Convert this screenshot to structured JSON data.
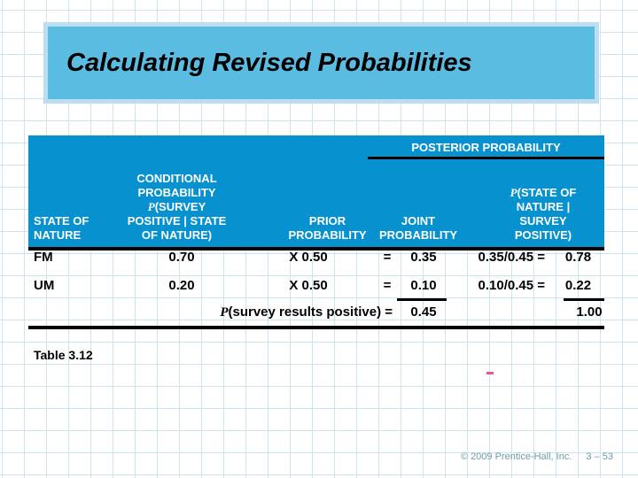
{
  "title": "Calculating Revised Probabilities",
  "table": {
    "posterior_label": "POSTERIOR PROBABILITY",
    "columns": {
      "state": {
        "line1": "STATE OF",
        "line2": "NATURE"
      },
      "conditional": {
        "line1": "CONDITIONAL",
        "line2": "PROBABILITY",
        "p": "P",
        "line3_rest": "(SURVEY",
        "line4": "POSITIVE | STATE",
        "line5": "OF NATURE)"
      },
      "prior": {
        "line1": "PRIOR",
        "line2": "PROBABILITY"
      },
      "joint": {
        "line1": "JOINT",
        "line2": "PROBABILITY"
      },
      "posterior": {
        "p": "P",
        "line1_rest": "(STATE OF",
        "line2": "NATURE |",
        "line3": "SURVEY",
        "line4": "POSITIVE)"
      }
    },
    "rows": [
      {
        "state": "FM",
        "conditional": "0.70",
        "prior": "X 0.50",
        "eq": "=",
        "joint": "0.35",
        "calc": "0.35/0.45 =",
        "posterior": "0.78"
      },
      {
        "state": "UM",
        "conditional": "0.20",
        "prior": "X 0.50",
        "eq": "=",
        "joint": "0.10",
        "calc": "0.10/0.45 =",
        "posterior": "0.22"
      }
    ],
    "total": {
      "p": "P",
      "label_rest": "(survey results positive) =",
      "joint_total": "0.45",
      "posterior_total": "1.00"
    }
  },
  "caption": "Table 3.12",
  "stray_mark": "-",
  "footer": {
    "copyright": "© 2009 Prentice-Hall, Inc.",
    "page": "3 – 53"
  },
  "colors": {
    "title_background": "#5bbce2",
    "title_border": "#bcdeef",
    "table_header_background": "#0891cf",
    "grid_line": "#cfe3ee",
    "footer_text": "#6d9cae",
    "stray_mark": "#e8559a"
  },
  "chart_data": {
    "type": "table",
    "title": "Calculating Revised Probabilities",
    "columns": [
      "STATE OF NATURE",
      "CONDITIONAL PROBABILITY P(SURVEY POSITIVE | STATE OF NATURE)",
      "PRIOR PROBABILITY",
      "JOINT PROBABILITY",
      "POSTERIOR PROBABILITY P(STATE OF NATURE | SURVEY POSITIVE)"
    ],
    "rows": [
      [
        "FM",
        0.7,
        0.5,
        0.35,
        0.78
      ],
      [
        "UM",
        0.2,
        0.5,
        0.1,
        0.22
      ]
    ],
    "totals": {
      "P(survey results positive)": 0.45,
      "posterior_total": 1.0
    }
  }
}
